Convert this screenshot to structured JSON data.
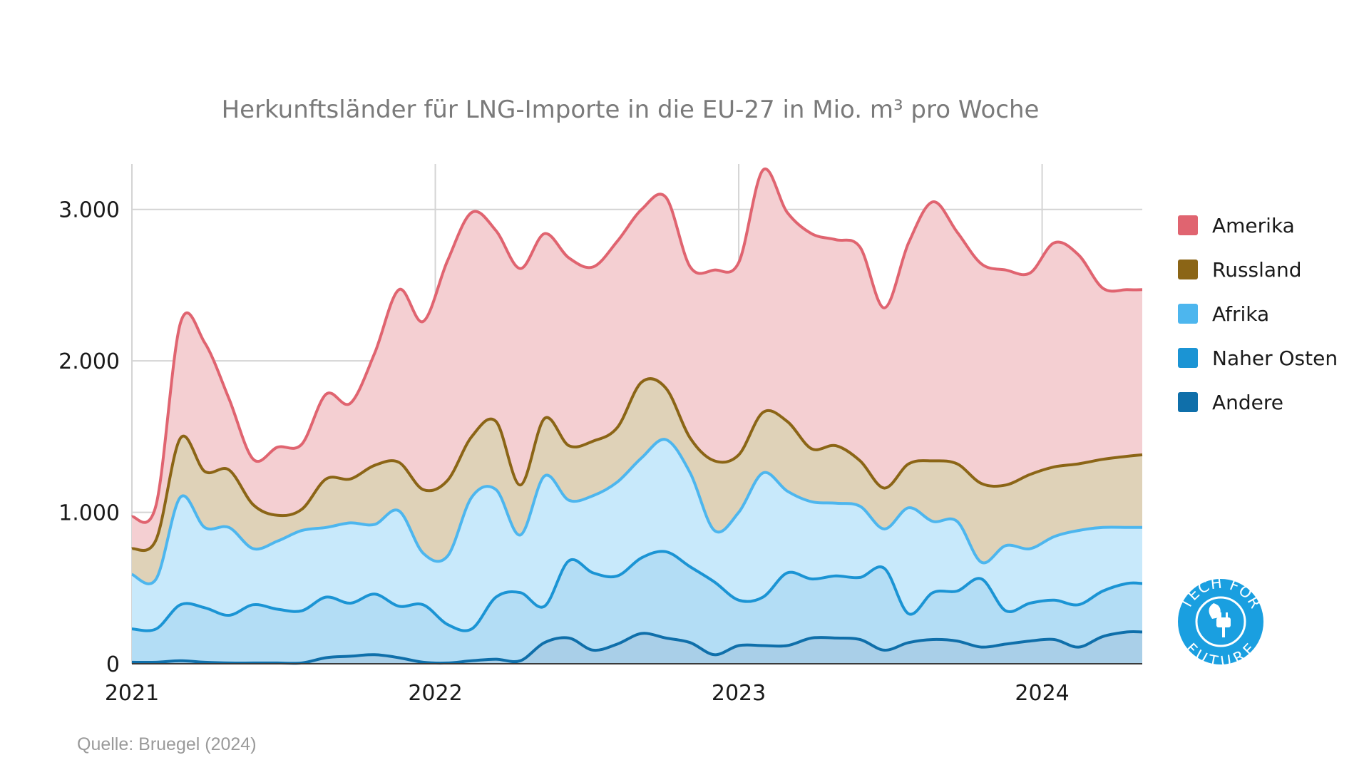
{
  "title": "Herkunftsländer für LNG-Importe in die EU-27 in Mio. m³ pro Woche",
  "source": "Quelle: Bruegel (2024)",
  "logo": {
    "text_top": "TECH FOR",
    "text_bottom": "FUTURE",
    "icon": "plug-leaf-icon",
    "color": "#1a9fe0"
  },
  "chart_data": {
    "type": "area",
    "stacked": false,
    "xlim": [
      2021.0,
      2024.33
    ],
    "ylim": [
      0,
      3300
    ],
    "x_ticks": [
      2021,
      2022,
      2023,
      2024
    ],
    "x_tick_labels": [
      "2021",
      "2022",
      "2023",
      "2024"
    ],
    "y_ticks": [
      0,
      1000,
      2000,
      3000
    ],
    "y_tick_labels": [
      "0",
      "1.000",
      "2.000",
      "3.000"
    ],
    "grid": true,
    "legend_position": "right",
    "x": [
      2021.0,
      2021.08,
      2021.16,
      2021.24,
      2021.32,
      2021.4,
      2021.48,
      2021.56,
      2021.64,
      2021.72,
      2021.8,
      2021.88,
      2021.96,
      2022.04,
      2022.12,
      2022.2,
      2022.28,
      2022.36,
      2022.44,
      2022.52,
      2022.6,
      2022.68,
      2022.76,
      2022.84,
      2022.92,
      2023.0,
      2023.08,
      2023.16,
      2023.24,
      2023.32,
      2023.4,
      2023.48,
      2023.56,
      2023.64,
      2023.72,
      2023.8,
      2023.88,
      2023.96,
      2024.04,
      2024.12,
      2024.2,
      2024.28,
      2024.33
    ],
    "series": [
      {
        "name": "Amerika",
        "color": "#e06470",
        "fill": "#f4cfd2",
        "values": [
          970,
          1050,
          2250,
          2120,
          1750,
          1350,
          1430,
          1450,
          1780,
          1720,
          2050,
          2470,
          2260,
          2660,
          2980,
          2860,
          2610,
          2840,
          2680,
          2620,
          2790,
          3000,
          3080,
          2620,
          2600,
          2650,
          3260,
          2980,
          2840,
          2800,
          2750,
          2350,
          2780,
          3050,
          2850,
          2640,
          2600,
          2580,
          2780,
          2700,
          2480,
          2470,
          2470
        ]
      },
      {
        "name": "Russland",
        "color": "#8b6516",
        "fill": "#dfd2b8",
        "values": [
          760,
          820,
          1490,
          1270,
          1280,
          1050,
          980,
          1020,
          1220,
          1220,
          1310,
          1330,
          1150,
          1210,
          1500,
          1600,
          1180,
          1620,
          1440,
          1470,
          1560,
          1860,
          1820,
          1490,
          1340,
          1380,
          1660,
          1600,
          1420,
          1440,
          1340,
          1160,
          1320,
          1340,
          1320,
          1190,
          1180,
          1250,
          1300,
          1320,
          1350,
          1370,
          1380
        ]
      },
      {
        "name": "Afrika",
        "color": "#4db6ee",
        "fill": "#c8e9fb",
        "values": [
          590,
          560,
          1100,
          900,
          900,
          760,
          810,
          880,
          900,
          930,
          920,
          1010,
          730,
          710,
          1100,
          1150,
          850,
          1240,
          1080,
          1110,
          1200,
          1360,
          1480,
          1260,
          880,
          1000,
          1260,
          1140,
          1070,
          1060,
          1040,
          890,
          1030,
          940,
          940,
          670,
          780,
          760,
          840,
          880,
          900,
          900,
          900
        ]
      },
      {
        "name": "Naher Osten",
        "color": "#1b94d4",
        "fill": "#b3ddf5",
        "values": [
          230,
          230,
          390,
          370,
          320,
          390,
          360,
          350,
          440,
          400,
          460,
          380,
          390,
          260,
          230,
          440,
          470,
          380,
          680,
          600,
          580,
          700,
          740,
          640,
          540,
          420,
          440,
          600,
          560,
          580,
          570,
          630,
          330,
          470,
          480,
          560,
          350,
          400,
          420,
          390,
          480,
          530,
          530
        ]
      },
      {
        "name": "Andere",
        "color": "#0f6faa",
        "fill": "#a9cfe8",
        "values": [
          10,
          10,
          20,
          10,
          5,
          5,
          5,
          5,
          40,
          50,
          60,
          40,
          10,
          5,
          20,
          30,
          20,
          140,
          170,
          90,
          130,
          200,
          170,
          140,
          60,
          120,
          120,
          120,
          170,
          170,
          160,
          90,
          140,
          160,
          150,
          110,
          130,
          150,
          160,
          110,
          180,
          210,
          210
        ]
      }
    ]
  }
}
